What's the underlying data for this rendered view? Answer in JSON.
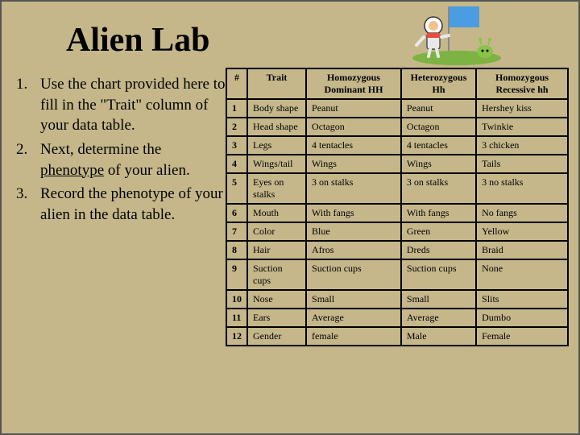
{
  "title": "Alien Lab",
  "instructions": [
    {
      "num": "1.",
      "text_before": "Use the chart provided here to fill in the \"Trait\" column of your data table.",
      "text_underline": "",
      "text_after": ""
    },
    {
      "num": "2.",
      "text_before": "Next, determine the ",
      "text_underline": "phenotype",
      "text_after": " of your alien."
    },
    {
      "num": "3.",
      "text_before": "Record the phenotype of your alien in the data table.",
      "text_underline": "",
      "text_after": ""
    }
  ],
  "table": {
    "headers": [
      "#",
      "Trait",
      "Homozygous Dominant HH",
      "Heterozygous Hh",
      "Homozygous Recessive hh"
    ],
    "rows": [
      [
        "1",
        "Body shape",
        "Peanut",
        "Peanut",
        "Hershey kiss"
      ],
      [
        "2",
        "Head shape",
        "Octagon",
        "Octagon",
        "Twinkie"
      ],
      [
        "3",
        "Legs",
        "4 tentacles",
        "4 tentacles",
        "3 chicken"
      ],
      [
        "4",
        "Wings/tail",
        "Wings",
        "Wings",
        "Tails"
      ],
      [
        "5",
        "Eyes on stalks",
        "3 on stalks",
        "3 on stalks",
        "3 no stalks"
      ],
      [
        "6",
        "Mouth",
        "With fangs",
        "With fangs",
        "No fangs"
      ],
      [
        "7",
        "Color",
        "Blue",
        "Green",
        "Yellow"
      ],
      [
        "8",
        "Hair",
        "Afros",
        "Dreds",
        "Braid"
      ],
      [
        "9",
        "Suction cups",
        "Suction cups",
        "Suction cups",
        "None"
      ],
      [
        "10",
        "Nose",
        "Small",
        "Small",
        "Slits"
      ],
      [
        "11",
        "Ears",
        "Average",
        "Average",
        "Dumbo"
      ],
      [
        "12",
        "Gender",
        "female",
        "Male",
        "Female"
      ]
    ]
  },
  "illustration": {
    "flag_color": "#4a9de0",
    "pole_color": "#888888",
    "suit_body": "#e8e8e8",
    "suit_accent": "#e84c3d",
    "ground_color": "#7cb342",
    "alien_color": "#8bc34a"
  }
}
